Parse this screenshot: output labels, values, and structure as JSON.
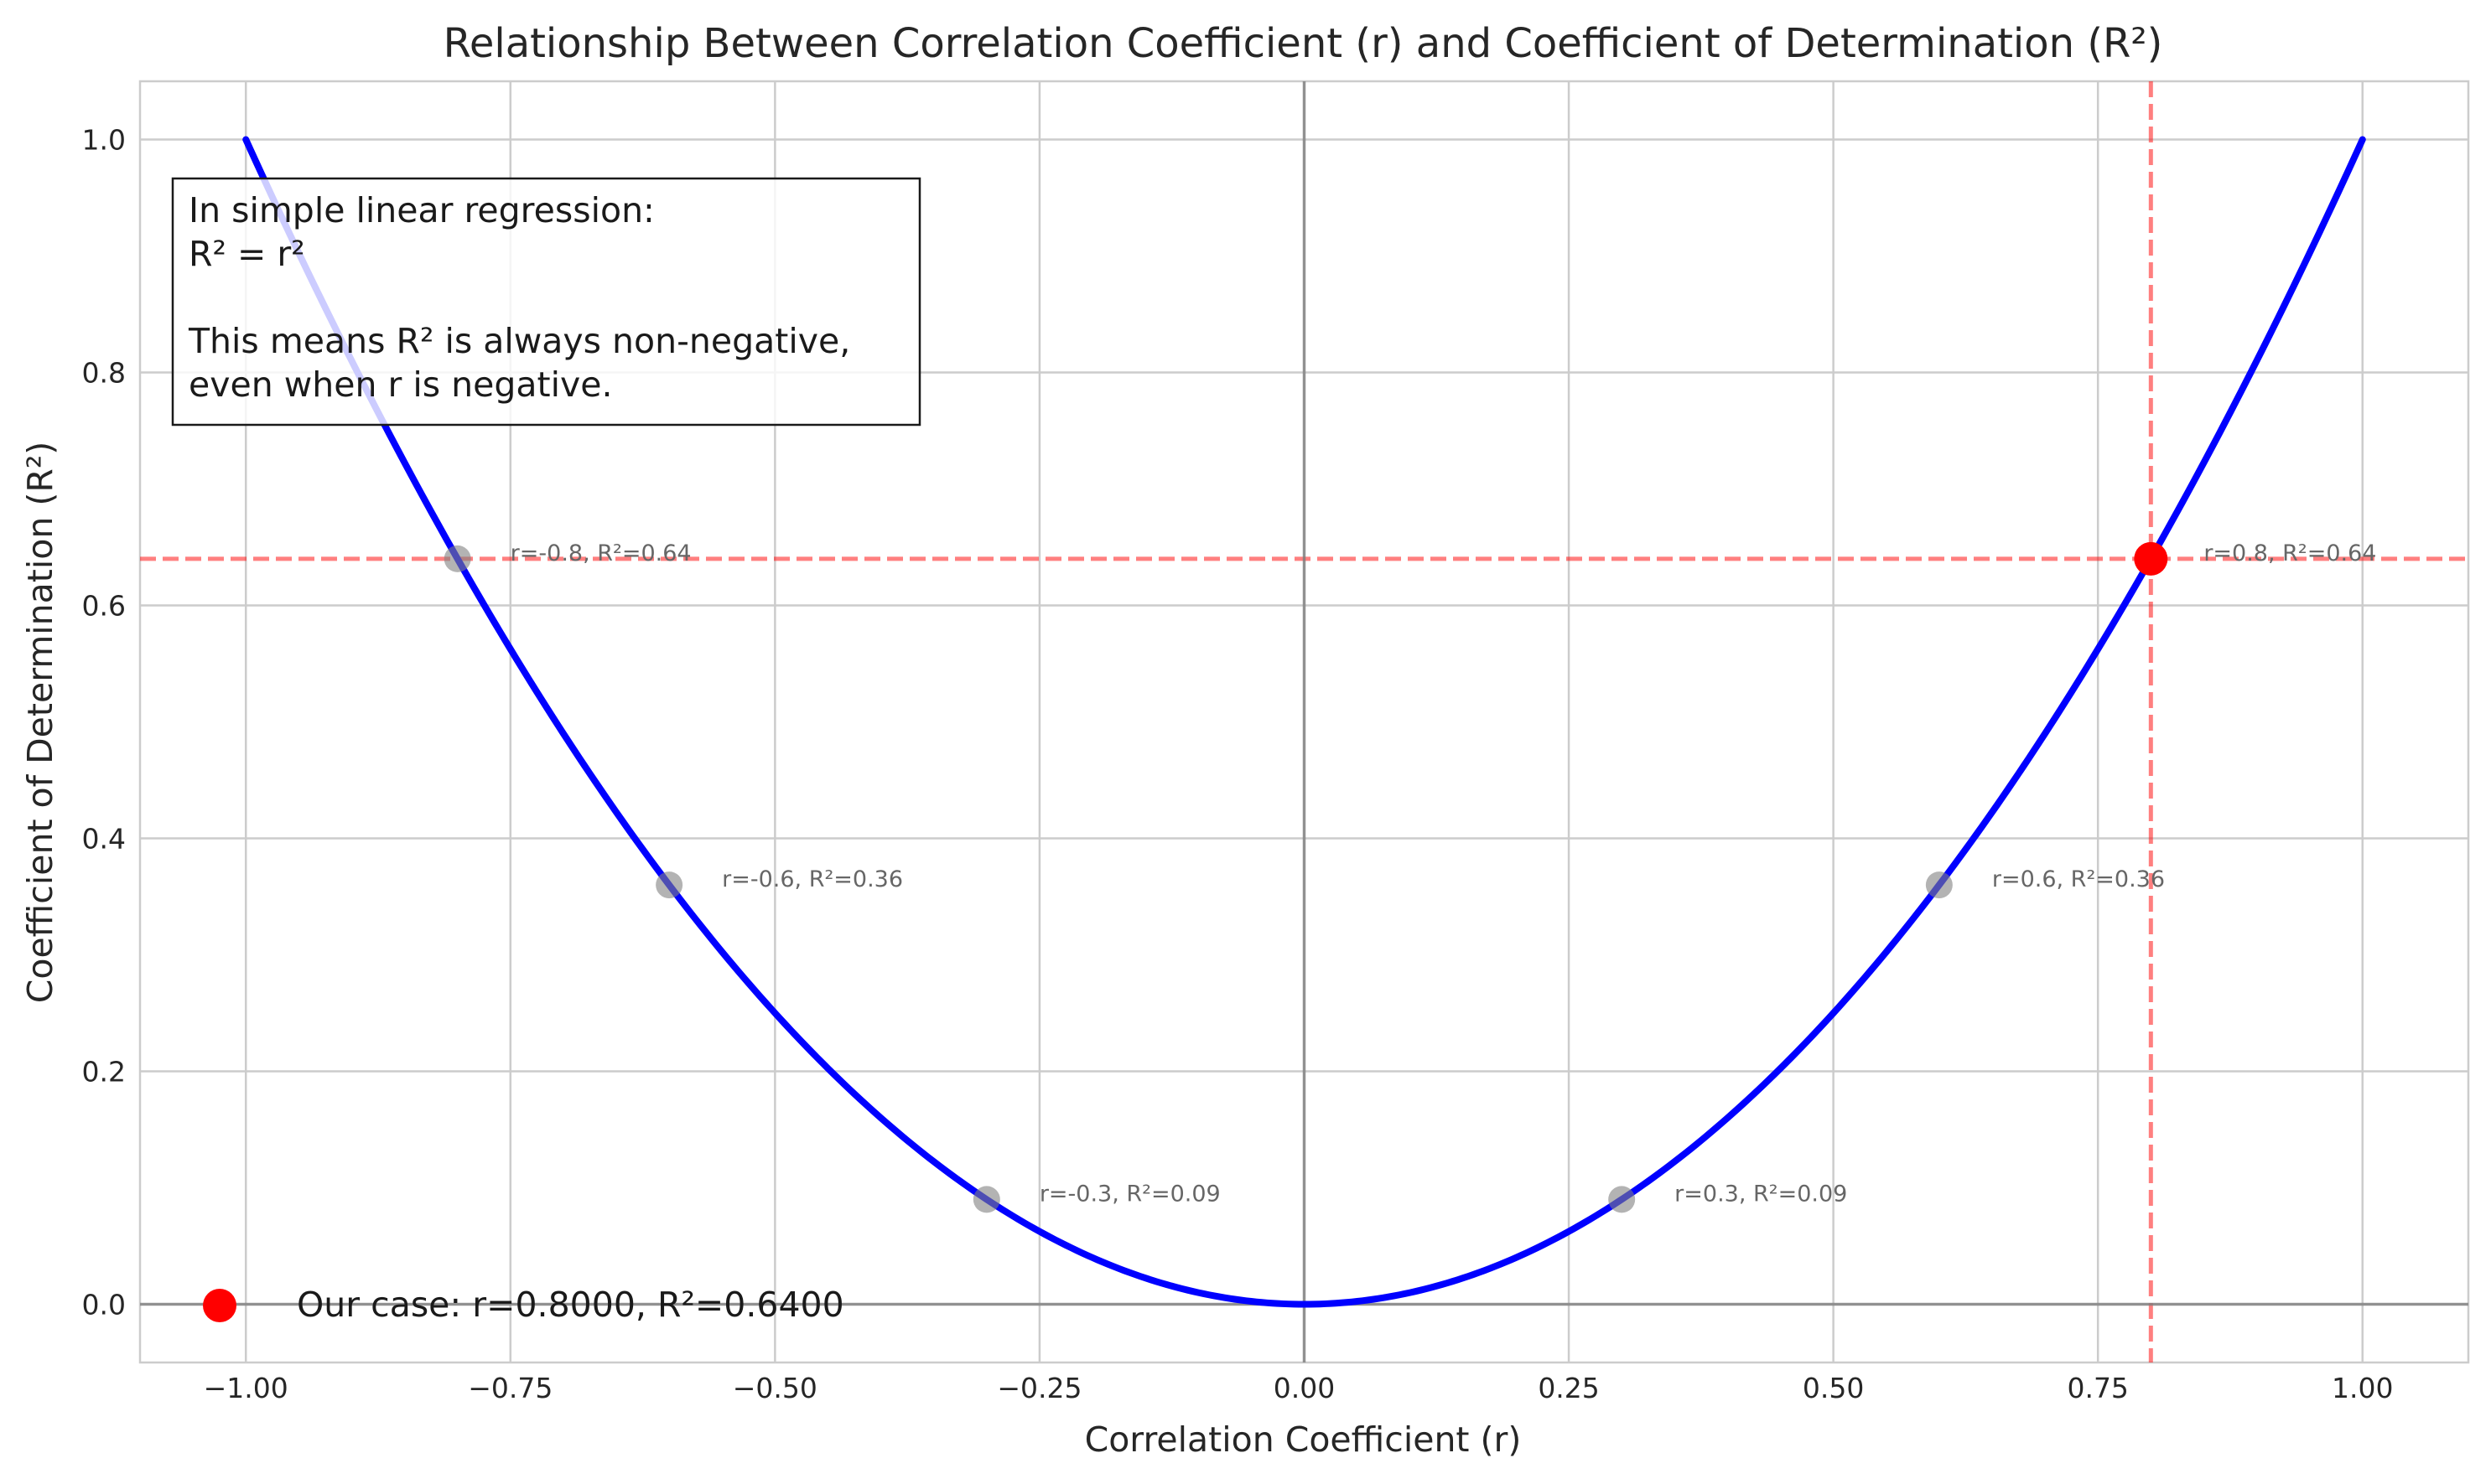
{
  "chart_data": {
    "type": "line",
    "title": "Relationship Between Correlation Coefficient (r) and Coefficient of Determination (R²)",
    "xlabel": "Correlation Coefficient (r)",
    "ylabel": "Coefficient of Determination (R²)",
    "xlim": [
      -1.1,
      1.1
    ],
    "ylim": [
      -0.05,
      1.05
    ],
    "xticks": [
      -1.0,
      -0.75,
      -0.5,
      -0.25,
      0.0,
      0.25,
      0.5,
      0.75,
      1.0
    ],
    "xtick_labels": [
      "−1.00",
      "−0.75",
      "−0.50",
      "−0.25",
      "0.00",
      "0.25",
      "0.50",
      "0.75",
      "1.00"
    ],
    "yticks": [
      0.0,
      0.2,
      0.4,
      0.6,
      0.8,
      1.0
    ],
    "ytick_labels": [
      "0.0",
      "0.2",
      "0.4",
      "0.6",
      "0.8",
      "1.0"
    ],
    "grid": true,
    "series": [
      {
        "function": "y = x^2",
        "x_range": [
          -1.0,
          1.0
        ],
        "color": "#0000ff"
      }
    ],
    "sample_points": [
      {
        "x": -0.8,
        "y": 0.64,
        "label": "r=-0.8, R²=0.64"
      },
      {
        "x": -0.6,
        "y": 0.36,
        "label": "r=-0.6, R²=0.36"
      },
      {
        "x": -0.3,
        "y": 0.09,
        "label": "r=-0.3, R²=0.09"
      },
      {
        "x": 0.3,
        "y": 0.09,
        "label": "r=0.3, R²=0.09"
      },
      {
        "x": 0.6,
        "y": 0.36,
        "label": "r=0.6, R²=0.36"
      },
      {
        "x": 0.8,
        "y": 0.64,
        "label": "r=0.8, R²=0.64"
      }
    ],
    "sample_point_color": "#808080",
    "highlight_point": {
      "x": 0.8,
      "y": 0.64,
      "color": "#ff0000"
    },
    "reference_lines": {
      "vertical_x": 0.8,
      "horizontal_y": 0.64,
      "color": "#ff0000"
    },
    "zero_lines": {
      "x": 0.0,
      "y": 0.0,
      "color": "#808080"
    },
    "info_box_lines": [
      "In simple linear regression:",
      "R² = r²",
      "",
      "This means R² is always non-negative,",
      "even when r is negative."
    ],
    "legend": {
      "label": "Our case: r=0.8000, R²=0.6400",
      "color": "#ff0000",
      "position": "lower-left"
    }
  }
}
